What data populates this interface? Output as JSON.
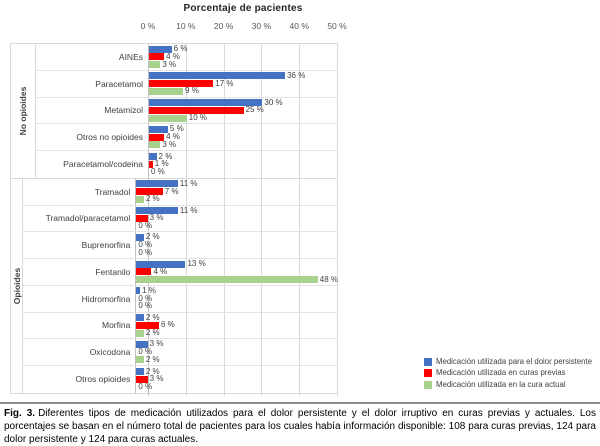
{
  "figure": {
    "caption_prefix": "Fig. 3.",
    "caption_text": "Diferentes tipos de medicación utilizados para el dolor persistente y el dolor irruptivo en curas previas y actuales. Los porcentajes se basan en el número total de pacientes para los cuales había información disponible: 108 para curas previas, 124 para dolor persistente y 124 para curas actuales."
  },
  "chart_data": {
    "type": "bar",
    "orientation": "horizontal",
    "title": "Porcentaje de pacientes",
    "xlabel": "Porcentaje de pacientes",
    "ylabel": "",
    "xlim": [
      0,
      50
    ],
    "x_ticks": [
      0,
      10,
      20,
      30,
      40,
      50
    ],
    "x_tick_suffix": " %",
    "value_suffix": " %",
    "grid": true,
    "legend_position": "bottom-right",
    "series": [
      {
        "name": "Medicación utilizada para el dolor persistente",
        "color": "#4472C4",
        "key": "persistent"
      },
      {
        "name": "Medicación utilizada en curas previas",
        "color": "#FF0000",
        "key": "previous-cures"
      },
      {
        "name": "Medicación utilizada en la cura actual",
        "color": "#A9D18E",
        "key": "current-cure"
      }
    ],
    "groups": [
      {
        "label": "No opioides",
        "rows": [
          {
            "category": "AINEs",
            "values": [
              6,
              4,
              3
            ]
          },
          {
            "category": "Paracetamol",
            "values": [
              36,
              17,
              9
            ]
          },
          {
            "category": "Metamizol",
            "values": [
              30,
              25,
              10
            ]
          },
          {
            "category": "Otros no opioides",
            "values": [
              5,
              4,
              3
            ]
          },
          {
            "category": "Paracetamol/codeina",
            "values": [
              2,
              1,
              0
            ]
          }
        ]
      },
      {
        "label": "Opioides",
        "rows": [
          {
            "category": "Tramadol",
            "values": [
              11,
              7,
              2
            ]
          },
          {
            "category": "Tramadol/paracetamol",
            "values": [
              11,
              3,
              0
            ]
          },
          {
            "category": "Buprenorfina",
            "values": [
              2,
              0,
              0
            ]
          },
          {
            "category": "Fentanilo",
            "values": [
              13,
              4,
              48
            ]
          },
          {
            "category": "Hidromorfina",
            "values": [
              1,
              0,
              0
            ]
          },
          {
            "category": "Morfina",
            "values": [
              2,
              6,
              2
            ]
          },
          {
            "category": "Oxicodona",
            "values": [
              3,
              0,
              2
            ]
          },
          {
            "category": "Otros opioides",
            "values": [
              2,
              3,
              0
            ]
          }
        ]
      }
    ]
  }
}
